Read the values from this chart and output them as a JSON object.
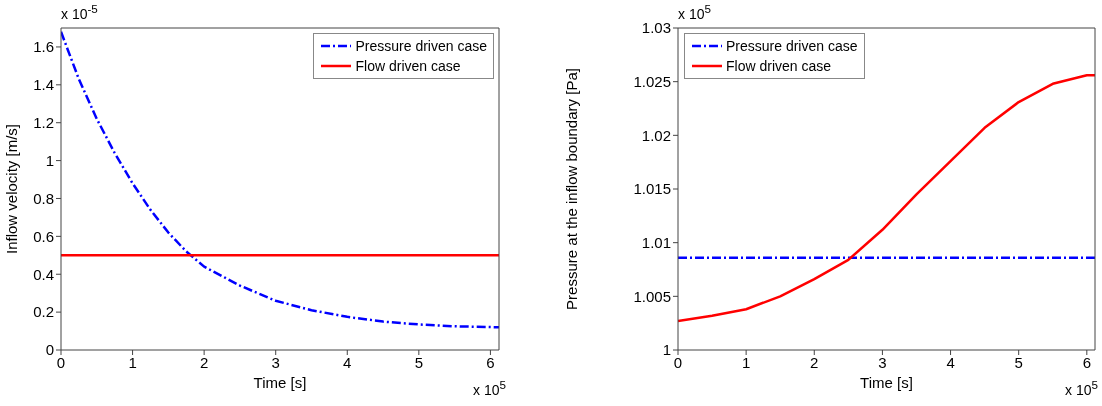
{
  "chart_data": [
    {
      "type": "line",
      "xlabel": "Time [s]",
      "ylabel": "Inflow velocity [m/s]",
      "xlim": [
        0,
        6.12
      ],
      "xticks": [
        0,
        1,
        2,
        3,
        4,
        5,
        6
      ],
      "ylim": [
        0,
        1.7
      ],
      "yticks": [
        0,
        0.2,
        0.4,
        0.6,
        0.8,
        1,
        1.2,
        1.4,
        1.6
      ],
      "grid": false,
      "legend": "top right",
      "annotations": [
        "x 10$^{-5}$",
        "x 10$^{5}$"
      ],
      "series": [
        {
          "name": "Pressure driven case",
          "color": "#0000ff",
          "line_style": "dashed",
          "x": [
            0,
            0.25,
            0.5,
            0.75,
            1,
            1.25,
            1.5,
            1.75,
            2,
            2.5,
            3,
            3.5,
            4,
            4.5,
            5,
            5.5,
            6.12
          ],
          "values": [
            1.68,
            1.43,
            1.22,
            1.04,
            0.88,
            0.74,
            0.62,
            0.52,
            0.44,
            0.34,
            0.26,
            0.21,
            0.175,
            0.15,
            0.135,
            0.125,
            0.12
          ]
        },
        {
          "name": "Flow driven case",
          "color": "#ff0000",
          "line_style": "solid",
          "x": [
            0,
            6.12
          ],
          "values": [
            0.5,
            0.5
          ]
        }
      ]
    },
    {
      "type": "line",
      "xlabel": "Time [s]",
      "ylabel": "Pressure at the inflow boundary [Pa]",
      "xlim": [
        0,
        6.12
      ],
      "xticks": [
        0,
        1,
        2,
        3,
        4,
        5,
        6
      ],
      "ylim": [
        1,
        1.03
      ],
      "yticks": [
        1,
        1.005,
        1.01,
        1.015,
        1.02,
        1.025,
        1.03
      ],
      "grid": false,
      "legend": "top left",
      "annotations": [
        "x 10$^{5}$",
        "x 10$^{5}$"
      ],
      "series": [
        {
          "name": "Pressure driven case",
          "color": "#0000ff",
          "line_style": "dashed",
          "x": [
            0,
            6.12
          ],
          "values": [
            1.0086,
            1.0086
          ]
        },
        {
          "name": "Flow driven case",
          "color": "#ff0000",
          "line_style": "solid",
          "x": [
            0,
            0.5,
            1,
            1.5,
            2,
            2.5,
            3,
            3.5,
            4,
            4.5,
            5,
            5.5,
            6,
            6.12
          ],
          "values": [
            1.0027,
            1.0032,
            1.0038,
            1.005,
            1.0066,
            1.0084,
            1.0112,
            1.0145,
            1.0176,
            1.0207,
            1.0231,
            1.0248,
            1.0256,
            1.0256
          ]
        }
      ]
    }
  ]
}
